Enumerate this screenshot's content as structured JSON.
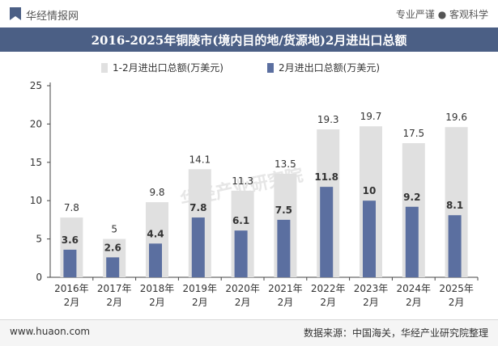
{
  "header": {
    "brand": "华经情报网",
    "tagline": "专业严谨 ● 客观科学"
  },
  "title": "2016-2025年铜陵市(境内目的地/货源地)2月进出口总额",
  "footer": {
    "site": "www.huaon.com",
    "source": "数据来源：中国海关，华经产业研究院整理"
  },
  "watermark": "华经产业研究院",
  "chart_data": {
    "type": "bar",
    "categories": [
      "2016年\n2月",
      "2017年\n2月",
      "2018年\n2月",
      "2019年\n2月",
      "2020年\n2月",
      "2021年\n2月",
      "2022年\n2月",
      "2023年\n2月",
      "2024年\n2月",
      "2025年\n2月"
    ],
    "series": [
      {
        "name": "1-2月进出口总额(万美元)",
        "values": [
          7.8,
          5,
          9.8,
          14.1,
          11.3,
          13.5,
          19.3,
          19.7,
          17.5,
          19.6
        ],
        "color": "#e0e0e0"
      },
      {
        "name": "2月进出口总额(万美元)",
        "values": [
          3.6,
          2.6,
          4.4,
          7.8,
          6.1,
          7.5,
          11.8,
          10,
          9.2,
          8.1
        ],
        "color": "#5b6fa0"
      }
    ],
    "yticks": [
      "0",
      "5",
      "10",
      "15",
      "20",
      "25"
    ],
    "ylim": [
      0,
      25
    ],
    "legend": "top-center",
    "grid": false
  }
}
